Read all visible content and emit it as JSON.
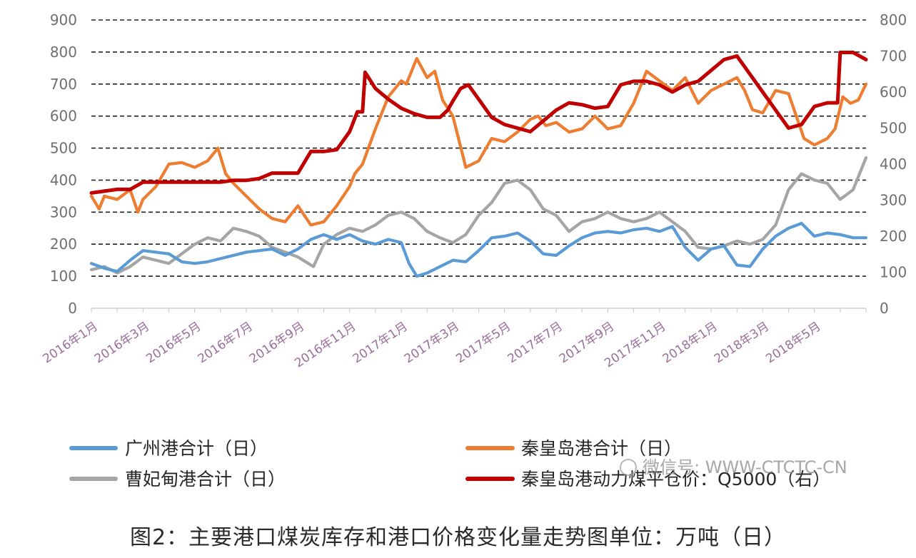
{
  "caption": "图2：主要港口煤炭库存和港口价格变化量走势图单位：万吨（日）",
  "watermark": "微信号: WWW-CTCTC-CN",
  "chart_data": {
    "type": "line",
    "title": "",
    "xlabel": "",
    "ylabel": "",
    "y_left": {
      "min": 0,
      "max": 900,
      "ticks": [
        0,
        100,
        200,
        300,
        400,
        500,
        600,
        700,
        800,
        900
      ]
    },
    "y_right": {
      "min": 0,
      "max": 800,
      "ticks": [
        0,
        100,
        200,
        300,
        400,
        500,
        600,
        700,
        800
      ]
    },
    "x_range": [
      0,
      30
    ],
    "x_tick_positions": [
      0,
      2,
      4,
      6,
      8,
      10,
      12,
      14,
      16,
      18,
      20,
      22,
      24,
      26,
      28
    ],
    "x_tick_labels": [
      "2016年1月",
      "2016年3月",
      "2016年5月",
      "2016年7月",
      "2016年9月",
      "2016年11月",
      "2017年1月",
      "2017年3月",
      "2017年5月",
      "2017年7月",
      "2017年9月",
      "2017年11月",
      "2018年1月",
      "2018年3月",
      "2018年5月"
    ],
    "grid": "horizontal-dashed",
    "legend": "bottom",
    "series": [
      {
        "name": "广州港合计（日）",
        "axis": "left",
        "color": "#5b9bd5",
        "x": [
          0,
          0.5,
          1,
          1.5,
          2,
          2.5,
          3,
          3.5,
          4,
          4.5,
          5,
          5.5,
          6,
          6.5,
          7,
          7.5,
          8,
          8.5,
          9,
          9.5,
          10,
          10.5,
          11,
          11.5,
          12,
          12.3,
          12.6,
          13,
          13.5,
          14,
          14.5,
          15,
          15.5,
          16,
          16.5,
          17,
          17.5,
          18,
          18.5,
          19,
          19.5,
          20,
          20.5,
          21,
          21.5,
          22,
          22.5,
          23,
          23.5,
          24,
          24.5,
          25,
          25.5,
          26,
          26.5,
          27,
          27.5,
          28,
          28.5,
          29,
          29.5,
          30
        ],
        "y": [
          140,
          125,
          115,
          150,
          180,
          175,
          170,
          145,
          140,
          145,
          155,
          165,
          175,
          180,
          185,
          165,
          185,
          215,
          230,
          215,
          230,
          210,
          200,
          215,
          205,
          140,
          100,
          110,
          130,
          150,
          145,
          180,
          220,
          225,
          235,
          210,
          170,
          165,
          195,
          220,
          235,
          240,
          235,
          245,
          250,
          240,
          255,
          190,
          150,
          185,
          195,
          135,
          130,
          185,
          225,
          250,
          265,
          225,
          235,
          230,
          220,
          220
        ]
      },
      {
        "name": "秦皇岛港合计（日）",
        "axis": "left",
        "color": "#ed7d31",
        "x": [
          0,
          0.3,
          0.5,
          1,
          1.5,
          1.8,
          2,
          2.5,
          3,
          3.5,
          4,
          4.5,
          4.9,
          5.2,
          5.5,
          6,
          6.5,
          7,
          7.5,
          8,
          8.5,
          9,
          9.5,
          10,
          10.2,
          10.5,
          11,
          11.5,
          12,
          12.2,
          12.6,
          13,
          13.3,
          13.6,
          14,
          14.5,
          15,
          15.5,
          16,
          16.5,
          17,
          17.3,
          17.6,
          18,
          18.5,
          19,
          19.5,
          20,
          20.5,
          21,
          21.5,
          22,
          22.5,
          23,
          23.5,
          24,
          24.5,
          25,
          25.3,
          25.6,
          26,
          26.5,
          27,
          27.3,
          27.6,
          28,
          28.5,
          28.8,
          29.1,
          29.4,
          29.7,
          30
        ],
        "y": [
          350,
          310,
          350,
          340,
          370,
          300,
          340,
          380,
          450,
          455,
          440,
          460,
          500,
          420,
          390,
          350,
          310,
          280,
          270,
          320,
          260,
          270,
          320,
          380,
          420,
          450,
          560,
          660,
          710,
          700,
          780,
          720,
          740,
          650,
          600,
          440,
          460,
          530,
          520,
          550,
          590,
          600,
          570,
          580,
          550,
          560,
          600,
          560,
          570,
          640,
          740,
          710,
          680,
          720,
          640,
          680,
          700,
          720,
          680,
          620,
          610,
          680,
          670,
          600,
          530,
          510,
          530,
          560,
          660,
          640,
          650,
          700
        ]
      },
      {
        "name": "曹妃甸港合计（日）",
        "axis": "left",
        "color": "#a5a5a5",
        "x": [
          0,
          0.5,
          1,
          1.5,
          2,
          2.5,
          3,
          3.5,
          4,
          4.5,
          5,
          5.5,
          6,
          6.5,
          7,
          7.5,
          8,
          8.3,
          8.6,
          9,
          9.5,
          10,
          10.5,
          11,
          11.5,
          12,
          12.5,
          13,
          13.5,
          14,
          14.5,
          15,
          15.5,
          16,
          16.5,
          17,
          17.5,
          18,
          18.5,
          19,
          19.5,
          20,
          20.5,
          21,
          21.5,
          22,
          22.5,
          23,
          23.5,
          24,
          24.5,
          25,
          25.5,
          26,
          26.5,
          27,
          27.5,
          28,
          28.5,
          29,
          29.5,
          30
        ],
        "y": [
          120,
          130,
          110,
          130,
          160,
          150,
          140,
          170,
          200,
          220,
          210,
          250,
          240,
          225,
          190,
          175,
          160,
          145,
          130,
          200,
          230,
          250,
          240,
          260,
          290,
          300,
          280,
          240,
          220,
          205,
          230,
          290,
          330,
          390,
          400,
          370,
          310,
          290,
          240,
          270,
          280,
          300,
          280,
          270,
          280,
          300,
          270,
          240,
          190,
          185,
          195,
          210,
          200,
          215,
          260,
          370,
          420,
          400,
          390,
          340,
          370,
          470
        ]
      },
      {
        "name": "秦皇岛港动力煤平仓价：Q5000（右）",
        "axis": "right",
        "color": "#c00000",
        "x": [
          0,
          1,
          1.5,
          2,
          2.5,
          3,
          4,
          5,
          5.5,
          6,
          6.5,
          7,
          7.5,
          8,
          8.5,
          9,
          9.5,
          10,
          10.3,
          10.5,
          10.6,
          11,
          11.5,
          12,
          12.5,
          13,
          13.5,
          13.8,
          14,
          14.3,
          14.6,
          15,
          15.5,
          16,
          16.5,
          17,
          17.5,
          18,
          18.5,
          19,
          19.5,
          20,
          20.5,
          21,
          21.5,
          22,
          22.5,
          23,
          23.5,
          24,
          24.5,
          25,
          25.5,
          26,
          26.5,
          27,
          27.5,
          28,
          28.5,
          28.9,
          29,
          29.5,
          30
        ],
        "y": [
          320,
          330,
          330,
          350,
          350,
          350,
          350,
          350,
          355,
          355,
          360,
          375,
          375,
          375,
          435,
          435,
          440,
          490,
          545,
          545,
          655,
          610,
          580,
          555,
          540,
          530,
          530,
          550,
          575,
          610,
          620,
          580,
          530,
          510,
          500,
          490,
          520,
          550,
          570,
          565,
          555,
          560,
          620,
          630,
          630,
          620,
          600,
          620,
          630,
          660,
          690,
          700,
          650,
          600,
          550,
          500,
          510,
          560,
          570,
          570,
          710,
          710,
          690
        ]
      }
    ]
  }
}
